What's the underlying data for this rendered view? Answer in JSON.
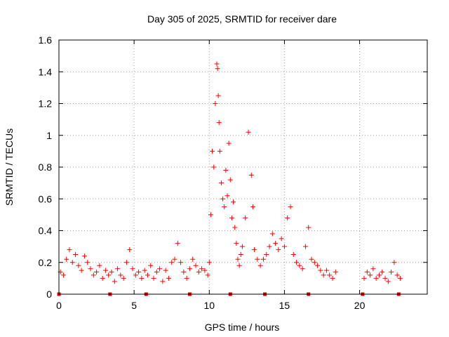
{
  "chart_data": {
    "type": "scatter",
    "title": "Day 305 of 2025, SRMTID for receiver dare",
    "xlabel": "GPS time / hours",
    "ylabel": "SRMTID / TECUs",
    "xlim": [
      0,
      24.5
    ],
    "ylim": [
      0,
      1.6
    ],
    "xticks": [
      "0",
      "5",
      "10",
      "15",
      "20"
    ],
    "yticks": [
      "0",
      "0.2",
      "0.4",
      "0.6",
      "0.8",
      "1",
      "1.2",
      "1.4",
      "1.6"
    ],
    "grid": true,
    "marker": "+",
    "color": "#ff0000",
    "data_gap_markers_hours": [
      0,
      3.4,
      5.8,
      8.7,
      11.4,
      13.7,
      16.6,
      20.2,
      22.6
    ],
    "series": [
      {
        "name": "SRMTID",
        "x": [
          0.1,
          0.3,
          0.5,
          0.7,
          0.9,
          1.1,
          1.3,
          1.5,
          1.7,
          1.9,
          2.1,
          2.3,
          2.5,
          2.7,
          2.9,
          3.1,
          3.3,
          3.5,
          3.7,
          3.9,
          4.1,
          4.3,
          4.5,
          4.7,
          4.9,
          5.1,
          5.3,
          5.5,
          5.7,
          5.9,
          6.1,
          6.3,
          6.5,
          6.7,
          6.9,
          7.1,
          7.3,
          7.5,
          7.7,
          7.9,
          8.1,
          8.3,
          8.5,
          8.7,
          8.9,
          9.1,
          9.3,
          9.5,
          9.7,
          9.9,
          10.0,
          10.1,
          10.2,
          10.3,
          10.4,
          10.5,
          10.55,
          10.6,
          10.65,
          10.7,
          10.8,
          10.9,
          11.0,
          11.1,
          11.2,
          11.3,
          11.4,
          11.5,
          11.6,
          11.7,
          11.8,
          11.9,
          12.0,
          12.1,
          12.2,
          12.4,
          12.6,
          12.8,
          12.9,
          13.0,
          13.2,
          13.4,
          13.6,
          13.8,
          14.0,
          14.2,
          14.4,
          14.6,
          14.8,
          15.0,
          15.2,
          15.4,
          15.6,
          15.8,
          16.0,
          16.2,
          16.4,
          16.6,
          16.8,
          17.0,
          17.2,
          17.4,
          17.6,
          17.8,
          18.0,
          18.2,
          18.4,
          20.3,
          20.5,
          20.7,
          20.9,
          21.1,
          21.3,
          21.5,
          21.7,
          21.9,
          22.1,
          22.3,
          22.5,
          22.7
        ],
        "y": [
          0.14,
          0.12,
          0.22,
          0.28,
          0.2,
          0.25,
          0.18,
          0.15,
          0.24,
          0.2,
          0.16,
          0.12,
          0.14,
          0.18,
          0.1,
          0.15,
          0.12,
          0.14,
          0.08,
          0.16,
          0.12,
          0.1,
          0.2,
          0.28,
          0.16,
          0.12,
          0.14,
          0.1,
          0.15,
          0.12,
          0.18,
          0.1,
          0.14,
          0.16,
          0.08,
          0.15,
          0.1,
          0.2,
          0.22,
          0.32,
          0.2,
          0.14,
          0.1,
          0.16,
          0.22,
          0.18,
          0.14,
          0.16,
          0.15,
          0.12,
          0.2,
          0.5,
          0.9,
          0.8,
          1.2,
          1.45,
          1.42,
          1.25,
          1.08,
          0.9,
          0.7,
          0.6,
          0.55,
          0.78,
          0.62,
          0.95,
          0.72,
          0.48,
          0.58,
          0.42,
          0.32,
          0.22,
          0.18,
          0.25,
          0.3,
          0.48,
          1.02,
          0.75,
          0.55,
          0.28,
          0.22,
          0.18,
          0.22,
          0.25,
          0.3,
          0.38,
          0.32,
          0.28,
          0.35,
          0.3,
          0.48,
          0.55,
          0.25,
          0.2,
          0.18,
          0.16,
          0.3,
          0.42,
          0.22,
          0.2,
          0.18,
          0.15,
          0.12,
          0.15,
          0.12,
          0.1,
          0.14,
          0.1,
          0.14,
          0.12,
          0.16,
          0.1,
          0.12,
          0.14,
          0.1,
          0.08,
          0.14,
          0.2,
          0.12,
          0.1
        ]
      }
    ]
  }
}
